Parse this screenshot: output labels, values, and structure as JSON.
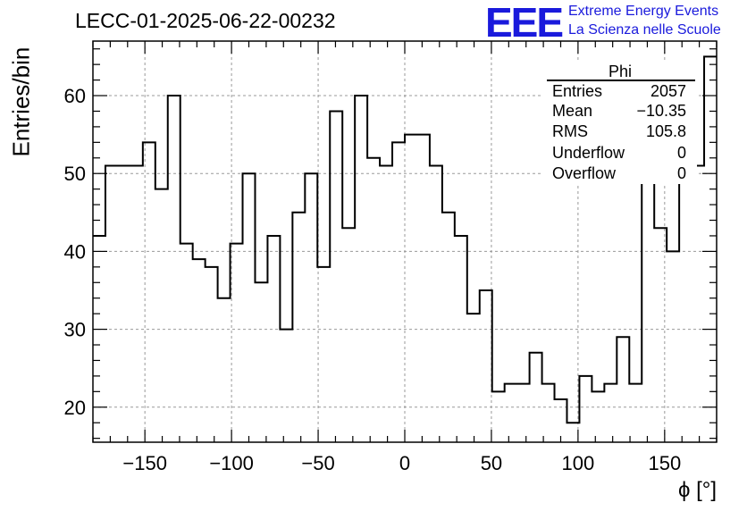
{
  "title": "LECC-01-2025-06-22-00232",
  "logo": {
    "mark": "EEE",
    "line1": "Extreme Energy Events",
    "line2": "La Scienza nelle Scuole",
    "color": "#1a1adc"
  },
  "stats": {
    "name": "Phi",
    "rows": [
      {
        "label": "Entries",
        "value": "2057"
      },
      {
        "label": "Mean",
        "value": "−10.35"
      },
      {
        "label": "RMS",
        "value": "105.8"
      },
      {
        "label": "Underflow",
        "value": "0"
      },
      {
        "label": "Overflow",
        "value": "0"
      }
    ]
  },
  "chart_data": {
    "type": "histogram",
    "xlabel": "ϕ [°]",
    "ylabel": "Entries/bin",
    "xlim": [
      -180,
      180
    ],
    "ylim": [
      15.5,
      67
    ],
    "bin_edges_start": -180,
    "bin_width": 7.2,
    "values": [
      42,
      51,
      51,
      51,
      54,
      48,
      60,
      41,
      39,
      38,
      34,
      41,
      50,
      36,
      42,
      30,
      45,
      50,
      38,
      58,
      43,
      60,
      52,
      51,
      54,
      55,
      55,
      51,
      45,
      42,
      32,
      35,
      22,
      23,
      23,
      27,
      23,
      21,
      18,
      24,
      22,
      23,
      29,
      23,
      53,
      43,
      40,
      53,
      51,
      65
    ],
    "xticks": [
      -150,
      -100,
      -50,
      0,
      50,
      100,
      150
    ],
    "yticks": [
      20,
      30,
      40,
      50,
      60
    ],
    "grid": true
  }
}
